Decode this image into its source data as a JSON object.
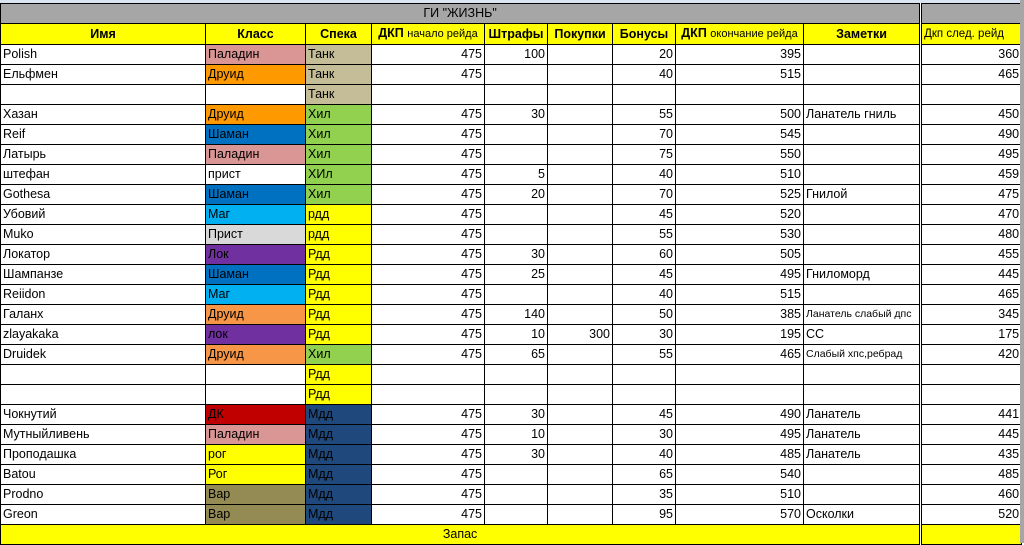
{
  "title": "ГИ \"ЖИЗНЬ\"",
  "headers": {
    "name": "Имя",
    "class": "Класс",
    "spec": "Спека",
    "dkp_start_bold": "ДКП",
    "dkp_start_rest": "начало рейда",
    "penalties": "Штрафы",
    "purchases": "Покупки",
    "bonuses": "Бонусы",
    "dkp_end_bold": "ДКП",
    "dkp_end_rest": "окончание рейда",
    "notes": "Заметки",
    "dkp_next": "Дкп след. рейд"
  },
  "class_colors": {
    "Паладин": "#DA9694",
    "Друид": "#FF9900",
    "Друид2": "#F79646",
    "Шаман": "#0070C0",
    "Маг": "#00B0F0",
    "Прист": "#D9D9D9",
    "Лок": "#7030A0",
    "ДК": "#C00000",
    "Рог": "#FFFF00",
    "Вар": "#948A54"
  },
  "spec_colors": {
    "Танк": "#C4BD97",
    "Хил": "#92D050",
    "Рдд": "#FFFF00",
    "Мдд": "#1F497D"
  },
  "rows": [
    {
      "name": "Polish",
      "cls": "Паладин",
      "cc": "#DA9694",
      "spec": "Танк",
      "sc": "#C4BD97",
      "start": "475",
      "pen": "100",
      "buy": "",
      "bonus": "20",
      "end": "395",
      "note": "",
      "next": "360"
    },
    {
      "name": "Ельфмен",
      "cls": "Друид",
      "cc": "#FF9900",
      "spec": "Танк",
      "sc": "#C4BD97",
      "start": "475",
      "pen": "",
      "buy": "",
      "bonus": "40",
      "end": "515",
      "note": "",
      "next": "465"
    },
    {
      "name": "",
      "cls": "",
      "cc": "",
      "spec": "Танк",
      "sc": "#C4BD97",
      "start": "",
      "pen": "",
      "buy": "",
      "bonus": "",
      "end": "",
      "note": "",
      "next": ""
    },
    {
      "name": "Хазан",
      "cls": "Друид",
      "cc": "#FF9900",
      "spec": "Хил",
      "sc": "#92D050",
      "start": "475",
      "pen": "30",
      "buy": "",
      "bonus": "55",
      "end": "500",
      "note": "Ланатель гниль",
      "next": "450"
    },
    {
      "name": "Reif",
      "cls": "Шаман",
      "cc": "#0070C0",
      "spec": "Хил",
      "sc": "#92D050",
      "start": "475",
      "pen": "",
      "buy": "",
      "bonus": "70",
      "end": "545",
      "note": "",
      "next": "490"
    },
    {
      "name": "Латырь",
      "cls": "Паладин",
      "cc": "#DA9694",
      "spec": "Хил",
      "sc": "#92D050",
      "start": "475",
      "pen": "",
      "buy": "",
      "bonus": "75",
      "end": "550",
      "note": "",
      "next": "495"
    },
    {
      "name": "штефан",
      "cls": "прист",
      "cc": "",
      "spec": "ХИл",
      "sc": "#92D050",
      "start": "475",
      "pen": "5",
      "buy": "",
      "bonus": "40",
      "end": "510",
      "note": "",
      "next": "459"
    },
    {
      "name": "Gothesa",
      "cls": "Шаман",
      "cc": "#0070C0",
      "spec": "Хил",
      "sc": "#92D050",
      "start": "475",
      "pen": "20",
      "buy": "",
      "bonus": "70",
      "end": "525",
      "note": "Гнилой",
      "next": "475"
    },
    {
      "name": "Убовий",
      "cls": "Маг",
      "cc": "#00B0F0",
      "spec": "рдд",
      "sc": "#FFFF00",
      "start": "475",
      "pen": "",
      "buy": "",
      "bonus": "45",
      "end": "520",
      "note": "",
      "next": "470"
    },
    {
      "name": "Muko",
      "cls": "Прист",
      "cc": "#D9D9D9",
      "spec": "рдд",
      "sc": "#FFFF00",
      "start": "475",
      "pen": "",
      "buy": "",
      "bonus": "55",
      "end": "530",
      "note": "",
      "next": "480"
    },
    {
      "name": "Локатор",
      "cls": "Лок",
      "cc": "#7030A0",
      "spec": "Рдд",
      "sc": "#FFFF00",
      "start": "475",
      "pen": "30",
      "buy": "",
      "bonus": "60",
      "end": "505",
      "note": "",
      "next": "455"
    },
    {
      "name": "Шампанзе",
      "cls": "Шаман",
      "cc": "#0070C0",
      "spec": "Рдд",
      "sc": "#FFFF00",
      "start": "475",
      "pen": "25",
      "buy": "",
      "bonus": "45",
      "end": "495",
      "note": "Гниломорд",
      "next": "445"
    },
    {
      "name": "Reiidon",
      "cls": "Маг",
      "cc": "#00B0F0",
      "spec": "Рдд",
      "sc": "#FFFF00",
      "start": "475",
      "pen": "",
      "buy": "",
      "bonus": "40",
      "end": "515",
      "note": "",
      "next": "465"
    },
    {
      "name": "Галанх",
      "cls": "Друид",
      "cc": "#F79646",
      "spec": "Рдд",
      "sc": "#FFFF00",
      "start": "475",
      "pen": "140",
      "buy": "",
      "bonus": "50",
      "end": "385",
      "note": "Ланатель слабый дпс",
      "small": true,
      "next": "345"
    },
    {
      "name": "zlayakaka",
      "cls": "лок",
      "cc": "#7030A0",
      "spec": "Рдд",
      "sc": "#FFFF00",
      "start": "475",
      "pen": "10",
      "buy": "300",
      "bonus": "30",
      "end": "195",
      "note": "СС",
      "next": "175"
    },
    {
      "name": "Druidek",
      "cls": "Друид",
      "cc": "#F79646",
      "spec": "Хил",
      "sc": "#92D050",
      "start": "475",
      "pen": "65",
      "buy": "",
      "bonus": "55",
      "end": "465",
      "note": "Слабый хпс,ребрад",
      "small": true,
      "next": "420"
    },
    {
      "name": "",
      "cls": "",
      "cc": "",
      "spec": "Рдд",
      "sc": "#FFFF00",
      "start": "",
      "pen": "",
      "buy": "",
      "bonus": "",
      "end": "",
      "note": "",
      "next": ""
    },
    {
      "name": "",
      "cls": "",
      "cc": "",
      "spec": "Рдд",
      "sc": "#FFFF00",
      "start": "",
      "pen": "",
      "buy": "",
      "bonus": "",
      "end": "",
      "note": "",
      "next": ""
    },
    {
      "name": "Чокнутий",
      "cls": "ДК",
      "cc": "#C00000",
      "spec": "Мдд",
      "sc": "#1F497D",
      "start": "475",
      "pen": "30",
      "buy": "",
      "bonus": "45",
      "end": "490",
      "note": "Ланатель",
      "next": "441"
    },
    {
      "name": "Мутныйливень",
      "cls": "Паладин",
      "cc": "#DA9694",
      "spec": "Мдд",
      "sc": "#1F497D",
      "start": "475",
      "pen": "10",
      "buy": "",
      "bonus": "30",
      "end": "495",
      "note": "Ланатель",
      "next": "445"
    },
    {
      "name": "Проподашка",
      "cls": "рог",
      "cc": "#FFFF00",
      "spec": "Мдд",
      "sc": "#1F497D",
      "start": "475",
      "pen": "30",
      "buy": "",
      "bonus": "40",
      "end": "485",
      "note": "Ланатель",
      "next": "435"
    },
    {
      "name": "Batou",
      "cls": "Рог",
      "cc": "#FFFF00",
      "spec": "Мдд",
      "sc": "#1F497D",
      "start": "475",
      "pen": "",
      "buy": "",
      "bonus": "65",
      "end": "540",
      "note": "",
      "next": "485"
    },
    {
      "name": "Prodno",
      "cls": "Вар",
      "cc": "#948A54",
      "spec": "Мдд",
      "sc": "#1F497D",
      "start": "475",
      "pen": "",
      "buy": "",
      "bonus": "35",
      "end": "510",
      "note": "",
      "next": "460"
    },
    {
      "name": "Greon",
      "cls": "Вар",
      "cc": "#948A54",
      "spec": "Мдд",
      "sc": "#1F497D",
      "start": "475",
      "pen": "",
      "buy": "",
      "bonus": "95",
      "end": "570",
      "note": "Осколки",
      "next": "520"
    }
  ],
  "footer": "Запас"
}
